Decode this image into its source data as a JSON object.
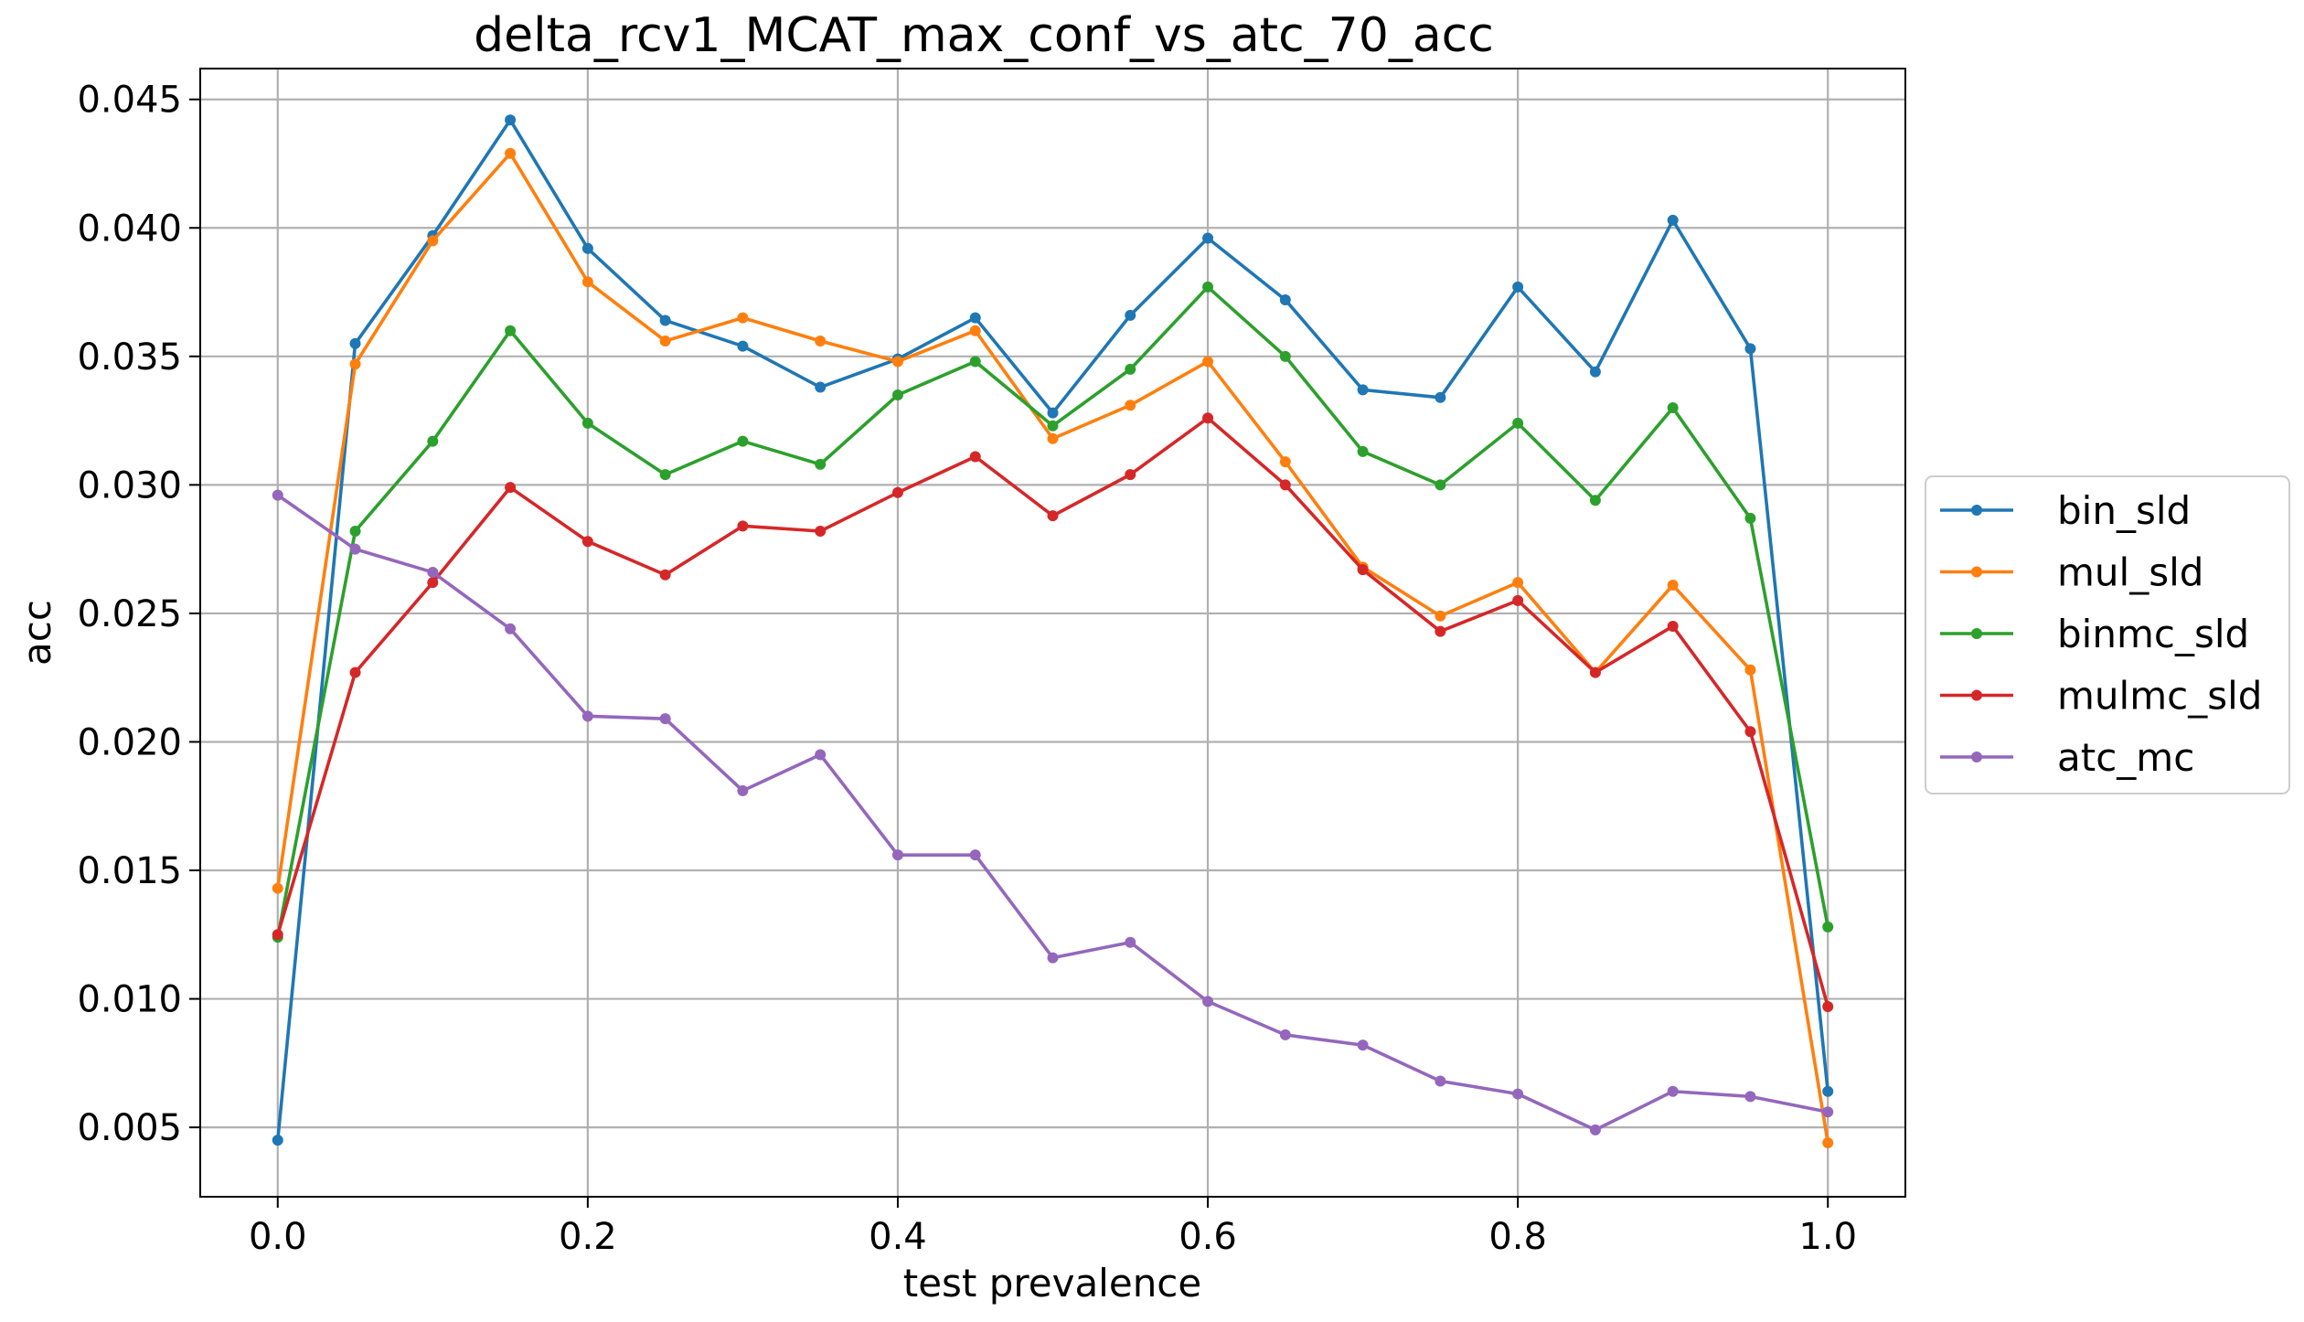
{
  "chart_data": {
    "type": "line",
    "title": "delta_rcv1_MCAT_max_conf_vs_atc_70_acc",
    "xlabel": "test prevalence",
    "ylabel": "acc",
    "xlim": [
      -0.05,
      1.05
    ],
    "ylim": [
      0.0023,
      0.0462
    ],
    "xticks": [
      0.0,
      0.2,
      0.4,
      0.6,
      0.8,
      1.0
    ],
    "xtick_labels": [
      "0.0",
      "0.2",
      "0.4",
      "0.6",
      "0.8",
      "1.0"
    ],
    "yticks": [
      0.005,
      0.01,
      0.015,
      0.02,
      0.025,
      0.03,
      0.035,
      0.04,
      0.045
    ],
    "ytick_labels": [
      "0.005",
      "0.010",
      "0.015",
      "0.020",
      "0.025",
      "0.030",
      "0.035",
      "0.040",
      "0.045"
    ],
    "grid": true,
    "legend_position": "center-right-outside",
    "x": [
      0.0,
      0.05,
      0.1,
      0.15,
      0.2,
      0.25,
      0.3,
      0.35,
      0.4,
      0.45,
      0.5,
      0.55,
      0.6,
      0.65,
      0.7,
      0.75,
      0.8,
      0.85,
      0.9,
      0.95,
      1.0
    ],
    "series": [
      {
        "name": "bin_sld",
        "color": "#1f77b4",
        "values": [
          0.0045,
          0.0355,
          0.0397,
          0.0442,
          0.0392,
          0.0364,
          0.0354,
          0.0338,
          0.0349,
          0.0365,
          0.0328,
          0.0366,
          0.0396,
          0.0372,
          0.0337,
          0.0334,
          0.0377,
          0.0344,
          0.0403,
          0.0353,
          0.0064
        ]
      },
      {
        "name": "mul_sld",
        "color": "#ff7f0e",
        "values": [
          0.0143,
          0.0347,
          0.0395,
          0.0429,
          0.0379,
          0.0356,
          0.0365,
          0.0356,
          0.0348,
          0.036,
          0.0318,
          0.0331,
          0.0348,
          0.0309,
          0.0268,
          0.0249,
          0.0262,
          0.0227,
          0.0261,
          0.0228,
          0.0044
        ]
      },
      {
        "name": "binmc_sld",
        "color": "#2ca02c",
        "values": [
          0.0124,
          0.0282,
          0.0317,
          0.036,
          0.0324,
          0.0304,
          0.0317,
          0.0308,
          0.0335,
          0.0348,
          0.0323,
          0.0345,
          0.0377,
          0.035,
          0.0313,
          0.03,
          0.0324,
          0.0294,
          0.033,
          0.0287,
          0.0128
        ]
      },
      {
        "name": "mulmc_sld",
        "color": "#d62728",
        "values": [
          0.0125,
          0.0227,
          0.0262,
          0.0299,
          0.0278,
          0.0265,
          0.0284,
          0.0282,
          0.0297,
          0.0311,
          0.0288,
          0.0304,
          0.0326,
          0.03,
          0.0267,
          0.0243,
          0.0255,
          0.0227,
          0.0245,
          0.0204,
          0.0097
        ]
      },
      {
        "name": "atc_mc",
        "color": "#9467bd",
        "values": [
          0.0296,
          0.0275,
          0.0266,
          0.0244,
          0.021,
          0.0209,
          0.0181,
          0.0195,
          0.0156,
          0.0156,
          0.0116,
          0.0122,
          0.0099,
          0.0086,
          0.0082,
          0.0068,
          0.0063,
          0.0049,
          0.0064,
          0.0062,
          0.0056
        ]
      }
    ]
  }
}
